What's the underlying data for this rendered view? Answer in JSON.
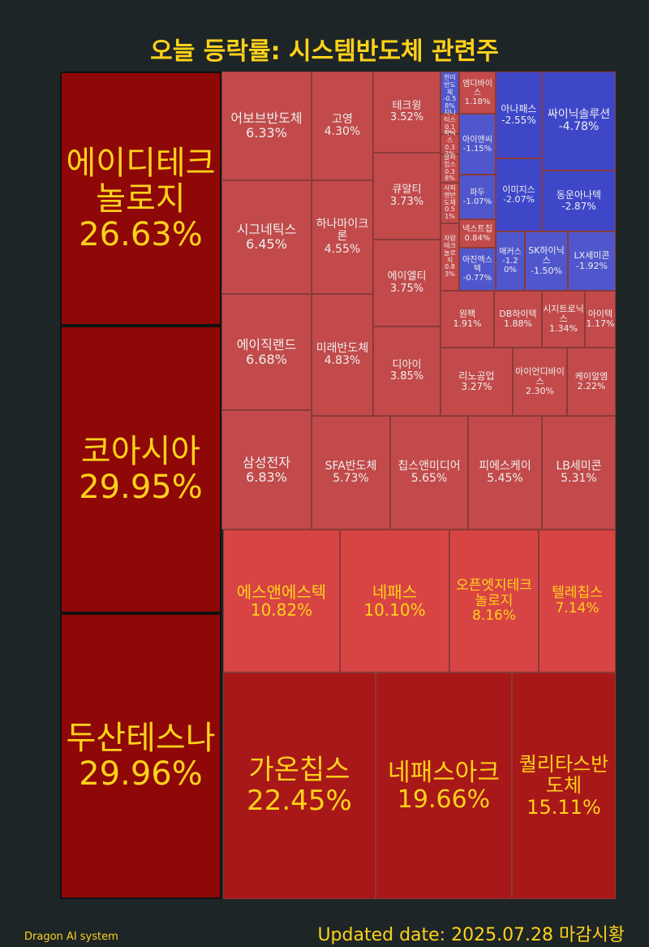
{
  "chart_data": {
    "type": "treemap",
    "title": "오늘 등락률: 시스템반도체 관련주",
    "footer_left": "Dragon AI system",
    "footer_right": "Updated date: 2025.07.28 마감시황",
    "categories": [
      "에이디테크놀로지",
      "코아시아",
      "두산테스나",
      "가온칩스",
      "네패스아크",
      "퀄리타스반도체",
      "에스앤에스텍",
      "네패스",
      "오픈엣지테크놀로지",
      "텔레칩스",
      "어보브반도체",
      "시그네틱스",
      "에이직랜드",
      "삼성전자",
      "고영",
      "하나마이크론",
      "미래반도체",
      "테크윙",
      "큐알티",
      "에이엘티",
      "디아이",
      "SFA반도체",
      "칩스앤미디어",
      "피에스케이",
      "LB세미콘",
      "원팩",
      "DB하이텍",
      "시지트로닉스",
      "아이텍",
      "리노공업",
      "아이언디바이스",
      "케이알엠",
      "싸이닉솔루션",
      "동운아나텍",
      "LX세미콘",
      "SK하이닉스",
      "매커스",
      "아나패스",
      "이미지스",
      "한미반도체",
      "엠디바이스",
      "지니틱스",
      "라닉스",
      "아이앤씨",
      "알파칩스",
      "사피엔반도체",
      "파두",
      "넥스트칩",
      "자람테크놀로지",
      "아진엑스텍"
    ],
    "values": [
      26.63,
      29.95,
      29.96,
      22.45,
      19.66,
      15.11,
      10.82,
      10.1,
      8.16,
      7.14,
      6.33,
      6.45,
      6.68,
      6.83,
      4.3,
      4.55,
      4.83,
      3.52,
      3.73,
      3.75,
      3.85,
      5.73,
      5.65,
      5.45,
      5.31,
      1.91,
      1.88,
      1.34,
      1.17,
      3.27,
      2.3,
      2.22,
      -4.78,
      -2.87,
      -1.92,
      -1.5,
      -1.2,
      -2.55,
      -2.07,
      -0.58,
      1.18,
      0.11,
      0.32,
      -1.15,
      0.38,
      0.51,
      -1.07,
      0.84,
      0.83,
      -0.77
    ],
    "value_labels": [
      "26.63%",
      "29.95%",
      "29.96%",
      "22.45%",
      "19.66%",
      "15.11%",
      "10.82%",
      "10.10%",
      "8.16%",
      "7.14%",
      "6.33%",
      "6.45%",
      "6.68%",
      "6.83%",
      "4.30%",
      "4.55%",
      "4.83%",
      "3.52%",
      "3.73%",
      "3.75%",
      "3.85%",
      "5.73%",
      "5.65%",
      "5.45%",
      "5.31%",
      "1.91%",
      "1.88%",
      "1.34%",
      "1.17%",
      "3.27%",
      "2.30%",
      "2.22%",
      "-4.78%",
      "-2.87%",
      "-1.92%",
      "-1.50%",
      "-1.20%",
      "-2.55%",
      "-2.07%",
      "-0.58%",
      "1.18%",
      "0.11%",
      "0.32%",
      "-1.15%",
      "0.38%",
      "0.51%",
      "-1.07%",
      "0.84%",
      "0.83%",
      "-0.77%"
    ]
  }
}
